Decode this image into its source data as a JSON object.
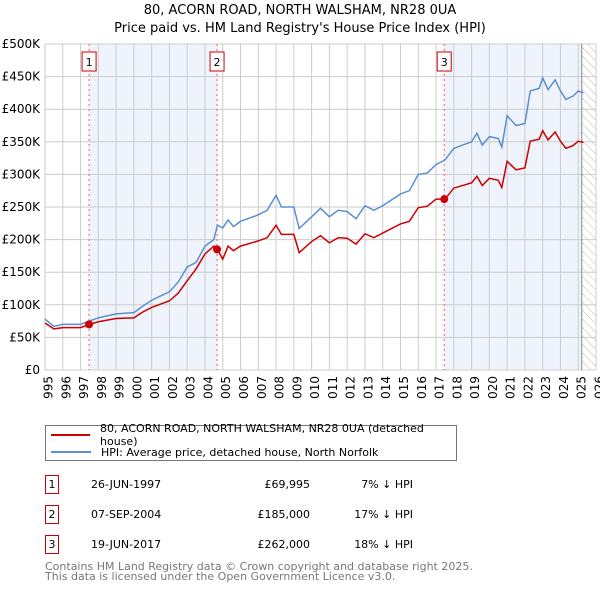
{
  "chart_data": {
    "type": "line",
    "title": "80, ACORN ROAD, NORTH WALSHAM, NR28 0UA",
    "subtitle": "Price paid vs. HM Land Registry's House Price Index (HPI)",
    "xlim": [
      1995,
      2026
    ],
    "ylim": [
      0,
      500000
    ],
    "x_ticks": [
      "1995",
      "1996",
      "1997",
      "1998",
      "1999",
      "2000",
      "2001",
      "2002",
      "2003",
      "2004",
      "2005",
      "2006",
      "2007",
      "2008",
      "2009",
      "2010",
      "2011",
      "2012",
      "2013",
      "2014",
      "2015",
      "2016",
      "2017",
      "2018",
      "2019",
      "2020",
      "2021",
      "2022",
      "2023",
      "2024",
      "2025",
      "2026"
    ],
    "y_ticks": [
      {
        "v": 0,
        "l": "£0"
      },
      {
        "v": 50000,
        "l": "£50K"
      },
      {
        "v": 100000,
        "l": "£100K"
      },
      {
        "v": 150000,
        "l": "£150K"
      },
      {
        "v": 200000,
        "l": "£200K"
      },
      {
        "v": 250000,
        "l": "£250K"
      },
      {
        "v": 300000,
        "l": "£300K"
      },
      {
        "v": 350000,
        "l": "£350K"
      },
      {
        "v": 400000,
        "l": "£400K"
      },
      {
        "v": 450000,
        "l": "£450K"
      },
      {
        "v": 500000,
        "l": "£500K"
      }
    ],
    "grid": true,
    "x": [
      1995,
      1995.5,
      1996,
      1997,
      1997.5,
      1998,
      1999,
      2000,
      2000.5,
      2001,
      2002,
      2002.5,
      2003,
      2003.5,
      2004,
      2004.5,
      2004.7,
      2005,
      2005.3,
      2005.6,
      2006,
      2007,
      2007.5,
      2008,
      2008.3,
      2009,
      2009.3,
      2010,
      2010.5,
      2011,
      2011.5,
      2012,
      2012.5,
      2013,
      2013.5,
      2014,
      2015,
      2015.5,
      2016,
      2016.5,
      2017,
      2017.5,
      2018,
      2019,
      2019.3,
      2019.6,
      2020,
      2020.5,
      2020.7,
      2021,
      2021.5,
      2022,
      2022.3,
      2022.8,
      2023,
      2023.3,
      2023.7,
      2024,
      2024.3,
      2024.7,
      2025,
      2025.3
    ],
    "series": [
      {
        "name": "80, ACORN ROAD, NORTH WALSHAM, NR28 0UA (detached house)",
        "color": "#cc0000",
        "values": [
          72,
          63,
          65,
          65,
          70,
          74,
          79,
          80,
          89,
          96,
          106,
          118,
          137,
          155,
          178,
          190,
          185,
          170,
          190,
          183,
          190,
          198,
          203,
          222,
          208,
          208,
          180,
          197,
          206,
          195,
          203,
          202,
          193,
          209,
          203,
          210,
          224,
          228,
          249,
          251,
          262,
          262,
          279,
          287,
          297,
          283,
          294,
          291,
          280,
          320,
          307,
          310,
          351,
          354,
          367,
          353,
          365,
          351,
          340,
          344,
          351,
          349
        ]
      },
      {
        "name": "HPI: Average price, detached house, North Norfolk",
        "color": "#5b8fd0",
        "values": [
          78,
          67,
          70,
          70,
          75,
          80,
          86,
          88,
          98,
          107,
          120,
          135,
          158,
          165,
          190,
          200,
          222,
          218,
          230,
          220,
          228,
          238,
          245,
          268,
          250,
          250,
          217,
          235,
          248,
          235,
          245,
          243,
          232,
          252,
          245,
          252,
          270,
          275,
          300,
          302,
          315,
          322,
          340,
          350,
          363,
          345,
          358,
          355,
          342,
          390,
          375,
          378,
          428,
          432,
          448,
          430,
          445,
          428,
          415,
          420,
          428,
          425
        ]
      }
    ],
    "value_unit": "thousand GBP",
    "sales": [
      {
        "n": "1",
        "x": 1997.48,
        "value": 69995,
        "date": "26-JUN-1997",
        "price": "£69,995",
        "hpi": "7% ↓ HPI"
      },
      {
        "n": "2",
        "x": 2004.68,
        "value": 185000,
        "date": "07-SEP-2004",
        "price": "£185,000",
        "hpi": "17% ↓ HPI"
      },
      {
        "n": "3",
        "x": 2017.46,
        "value": 262000,
        "date": "19-JUN-2017",
        "price": "£262,000",
        "hpi": "18% ↓ HPI"
      }
    ],
    "forecast_from": 2025.2
  },
  "footer": {
    "line1": "Contains HM Land Registry data © Crown copyright and database right 2025.",
    "line2": "This data is licensed under the Open Government Licence v3.0."
  }
}
